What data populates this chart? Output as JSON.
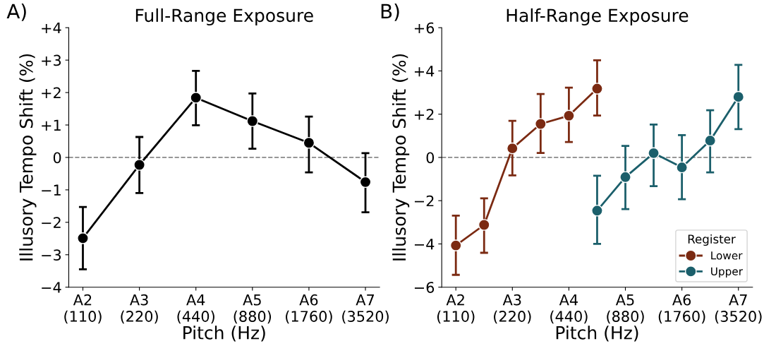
{
  "chart_data": [
    {
      "type": "line",
      "title": "Full-Range Exposure",
      "xlabel": "Pitch (Hz)",
      "ylabel": "Illusory Tempo Shift (%)",
      "annotations": [
        "A)"
      ],
      "categories": [
        "A2\n(110)",
        "A3\n(220)",
        "A4\n(440)",
        "A5\n(880)",
        "A6\n(1760)",
        "A7\n(3520)"
      ],
      "series": [
        {
          "color": "#000000",
          "values": [
            -2.49,
            -0.23,
            1.84,
            1.12,
            0.45,
            -0.76
          ],
          "errors": [
            [
              -3.45,
              -1.53
            ],
            [
              -1.1,
              0.63
            ],
            [
              0.99,
              2.67
            ],
            [
              0.27,
              1.97
            ],
            [
              -0.46,
              1.26
            ],
            [
              -1.69,
              0.13
            ]
          ]
        }
      ],
      "ylim": [
        -4,
        4
      ],
      "yticks": [
        {
          "value": -4,
          "label": "−4"
        },
        {
          "value": -3,
          "label": "−3"
        },
        {
          "value": -2,
          "label": "−2"
        },
        {
          "value": -1,
          "label": "−1"
        },
        0,
        {
          "value": 1,
          "label": "+1"
        },
        {
          "value": 2,
          "label": "+2"
        },
        {
          "value": 3,
          "label": "+3"
        },
        {
          "value": 4,
          "label": "+4"
        }
      ],
      "ref_lines": [
        {
          "axis": "y",
          "value": 0,
          "color": "#888888",
          "line_style": "dashed"
        }
      ],
      "marker": "circle",
      "line_style": "solid",
      "grid": false,
      "legend": false
    },
    {
      "type": "line",
      "title": "Half-Range Exposure",
      "xlabel": "Pitch (Hz)",
      "ylabel": "Illusory Tempo Shift (%)",
      "annotations": [
        "B)"
      ],
      "legend_title": "Register",
      "categories": [
        "A2\n(110)",
        null,
        "A3\n(220)",
        null,
        "A4\n(440)",
        null,
        "A5\n(880)",
        null,
        "A6\n(1760)",
        null,
        "A7\n(3520)"
      ],
      "series": [
        {
          "name": "Lower",
          "color": "#7b2a12",
          "values": [
            -4.07,
            -3.12,
            0.42,
            1.55,
            1.93,
            3.18,
            null,
            null,
            null,
            null,
            null
          ],
          "errors": [
            [
              -5.43,
              -2.69
            ],
            [
              -4.41,
              -1.89
            ],
            [
              -0.83,
              1.69
            ],
            [
              0.21,
              2.93
            ],
            [
              0.71,
              3.23
            ],
            [
              1.94,
              4.49
            ],
            null,
            null,
            null,
            null,
            null
          ]
        },
        {
          "name": "Upper",
          "color": "#1b5f6b",
          "values": [
            null,
            null,
            null,
            null,
            null,
            -2.46,
            -0.91,
            0.2,
            -0.46,
            0.78,
            2.8
          ],
          "errors": [
            null,
            null,
            null,
            null,
            null,
            [
              -4.0,
              -0.85
            ],
            [
              -2.39,
              0.53
            ],
            [
              -1.33,
              1.52
            ],
            [
              -1.93,
              1.03
            ],
            [
              -0.69,
              2.18
            ],
            [
              1.31,
              4.28
            ]
          ]
        }
      ],
      "ylim": [
        -6,
        6
      ],
      "yticks": [
        {
          "value": -6,
          "label": "−6"
        },
        {
          "value": -4,
          "label": "−4"
        },
        {
          "value": -2,
          "label": "−2"
        },
        0,
        {
          "value": 2,
          "label": "+2"
        },
        {
          "value": 4,
          "label": "+4"
        },
        {
          "value": 6,
          "label": "+6"
        }
      ],
      "ref_lines": [
        {
          "axis": "y",
          "value": 0,
          "color": "#888888",
          "line_style": "dashed"
        }
      ],
      "marker": "circle",
      "line_style": "solid",
      "grid": false,
      "legend": "bottom right"
    }
  ]
}
